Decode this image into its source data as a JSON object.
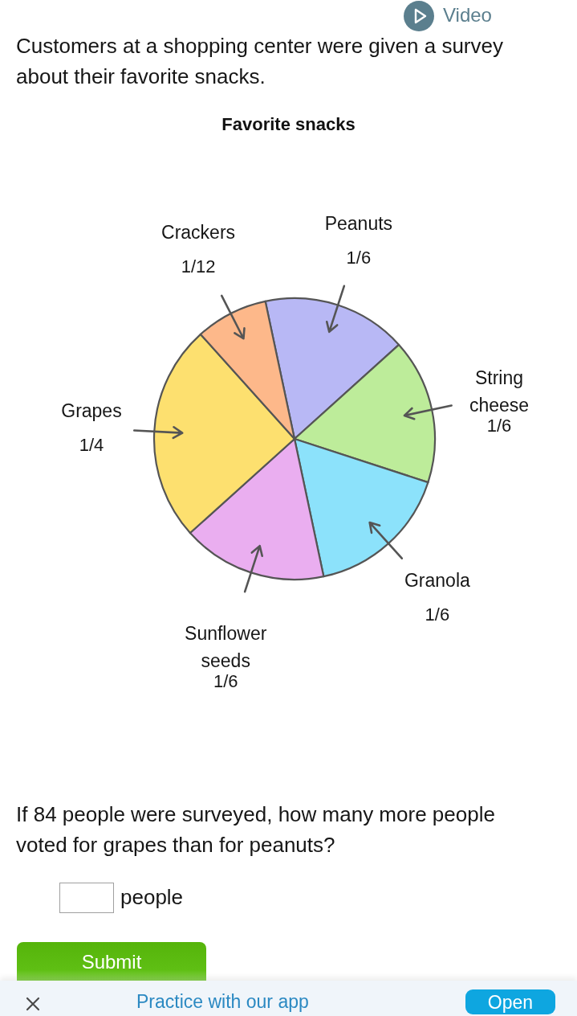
{
  "chart_data": {
    "type": "pie",
    "title": "Favorite snacks",
    "categories": [
      "Peanuts",
      "String cheese",
      "Granola",
      "Sunflower seeds",
      "Grapes",
      "Crackers"
    ],
    "values": [
      0.1667,
      0.1667,
      0.1667,
      0.1667,
      0.25,
      0.0833
    ],
    "value_labels": [
      "1/6",
      "1/6",
      "1/6",
      "1/6",
      "1/4",
      "1/12"
    ],
    "colors": [
      "#b8b8f5",
      "#bdec9a",
      "#8ce2fb",
      "#eaaef0",
      "#fde06f",
      "#fdb88a"
    ],
    "annotations": [
      "Video",
      "Customers at a shopping center were given a survey about their favorite snacks.",
      "If 84 people were surveyed, how many more people voted for grapes than for peanuts?",
      "people",
      "Submit",
      "Practice with our app",
      "Open"
    ]
  }
}
